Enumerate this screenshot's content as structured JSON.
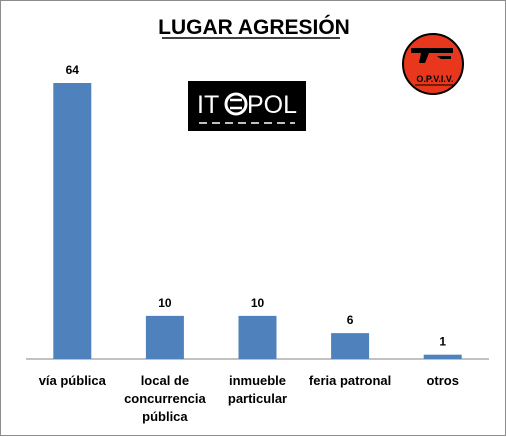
{
  "chart_data": {
    "type": "bar",
    "title": "LUGAR AGRESIÓN",
    "categories": [
      "vía pública",
      "local de concurrencia pública",
      "inmueble particular",
      "feria patronal",
      "otros"
    ],
    "category_lines": [
      [
        "vía pública"
      ],
      [
        "local de",
        "concurrencia",
        "pública"
      ],
      [
        "inmueble",
        "particular"
      ],
      [
        "feria patronal"
      ],
      [
        "otros"
      ]
    ],
    "values": [
      64,
      10,
      10,
      6,
      1
    ],
    "ylim": [
      0,
      70
    ],
    "grid": false,
    "legend": "none",
    "bar_color": "#4f81bd",
    "xlabel": "",
    "ylabel": ""
  },
  "logos": {
    "itepol": {
      "text": "ITEPOL",
      "bg_color": "#000000",
      "fg_color": "#ffffff"
    },
    "opviv": {
      "text": "O.P.V.I.V.",
      "bg_color": "#e8371d",
      "ring_color": "#000000"
    }
  }
}
